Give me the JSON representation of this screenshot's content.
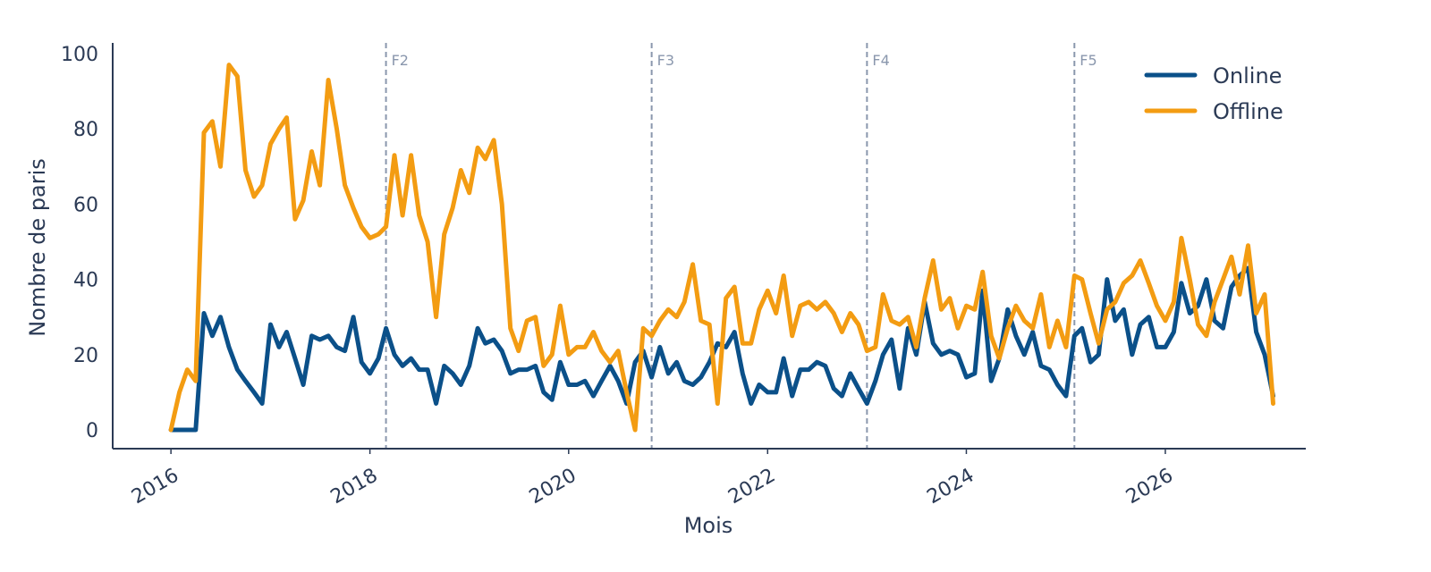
{
  "chart_data": {
    "type": "line",
    "xlabel": "Mois",
    "ylabel": "Nombre de paris",
    "ylim": [
      0,
      100
    ],
    "xlim": [
      "2015-06-01",
      "2027-06-01"
    ],
    "yticks": [
      0,
      20,
      40,
      60,
      80,
      100
    ],
    "xticks": [
      "2016",
      "2018",
      "2020",
      "2022",
      "2024",
      "2026"
    ],
    "grid": false,
    "legend_position": "top-right",
    "colors": {
      "online": "#0b5089",
      "offline": "#f39c12",
      "event_line": "#8a97ad",
      "axis": "#2b3a55"
    },
    "events": [
      {
        "label": "F2",
        "date": "2018-03-01"
      },
      {
        "label": "F3",
        "date": "2020-11-01"
      },
      {
        "label": "F4",
        "date": "2023-01-01"
      },
      {
        "label": "F5",
        "date": "2025-02-01"
      }
    ],
    "start_month": "2016-01",
    "series": [
      {
        "name": "Online",
        "color": "#0b5089",
        "values": [
          0,
          0,
          0,
          0,
          31,
          25,
          30,
          22,
          16,
          13,
          10,
          7,
          28,
          22,
          26,
          19,
          12,
          25,
          24,
          25,
          22,
          21,
          30,
          18,
          15,
          19,
          27,
          20,
          17,
          19,
          16,
          16,
          7,
          17,
          15,
          12,
          17,
          27,
          23,
          24,
          21,
          15,
          16,
          16,
          17,
          10,
          8,
          18,
          12,
          12,
          13,
          9,
          13,
          17,
          13,
          7,
          18,
          21,
          14,
          22,
          15,
          18,
          13,
          12,
          14,
          18,
          23,
          22,
          26,
          15,
          7,
          12,
          10,
          10,
          19,
          9,
          16,
          16,
          18,
          17,
          11,
          9,
          15,
          11,
          7,
          13,
          20,
          24,
          11,
          27,
          20,
          34,
          23,
          20,
          21,
          20,
          14,
          15,
          37,
          13,
          19,
          32,
          25,
          20,
          26,
          17,
          16,
          12,
          9,
          25,
          27,
          18,
          20,
          40,
          29,
          32,
          20,
          28,
          30,
          22,
          22,
          26,
          39,
          31,
          33,
          40,
          29,
          27,
          38,
          41,
          43,
          26,
          20,
          9
        ]
      },
      {
        "name": "Offline",
        "color": "#f39c12",
        "values": [
          0,
          10,
          16,
          13,
          79,
          82,
          70,
          97,
          94,
          69,
          62,
          65,
          76,
          80,
          83,
          56,
          61,
          74,
          65,
          93,
          80,
          65,
          59,
          54,
          51,
          52,
          54,
          73,
          57,
          73,
          57,
          50,
          30,
          52,
          59,
          69,
          63,
          75,
          72,
          77,
          60,
          27,
          21,
          29,
          30,
          17,
          20,
          33,
          20,
          22,
          22,
          26,
          21,
          18,
          21,
          10,
          0,
          27,
          25,
          29,
          32,
          30,
          34,
          44,
          29,
          28,
          7,
          35,
          38,
          23,
          23,
          32,
          37,
          31,
          41,
          25,
          33,
          34,
          32,
          34,
          31,
          26,
          31,
          28,
          21,
          22,
          36,
          29,
          28,
          30,
          22,
          35,
          45,
          32,
          35,
          27,
          33,
          32,
          42,
          25,
          19,
          27,
          33,
          29,
          27,
          36,
          22,
          29,
          22,
          41,
          40,
          31,
          23,
          32,
          34,
          39,
          41,
          45,
          39,
          33,
          29,
          34,
          51,
          40,
          28,
          25,
          34,
          40,
          46,
          36,
          49,
          31,
          36,
          7
        ]
      }
    ]
  }
}
